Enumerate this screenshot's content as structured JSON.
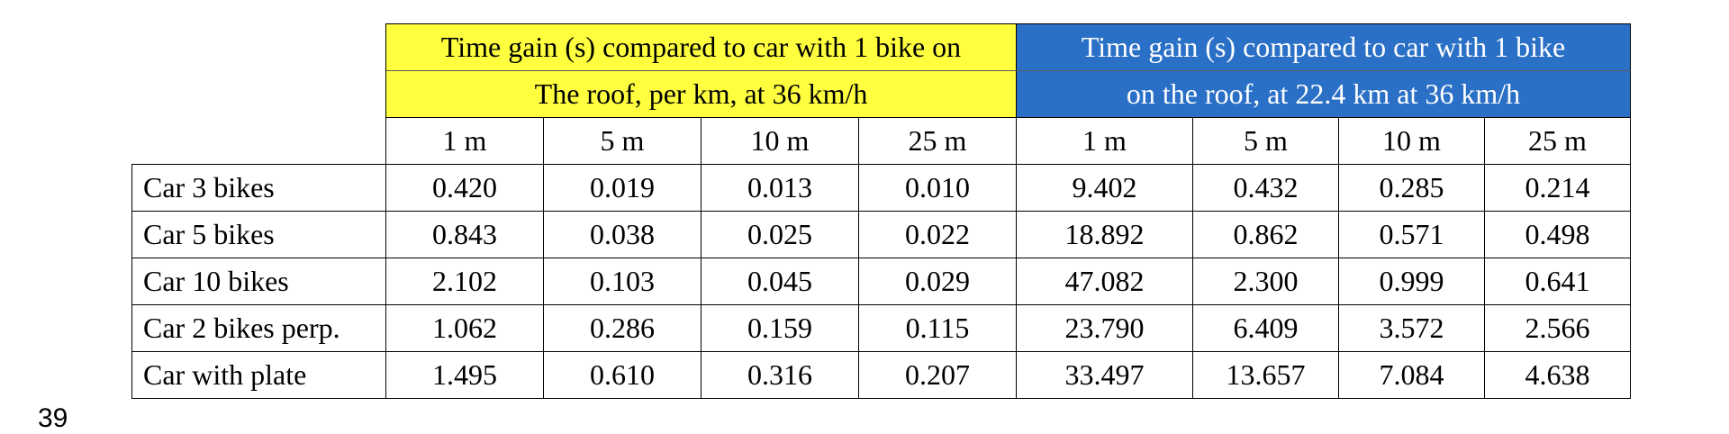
{
  "headers": {
    "group1": {
      "line1": "Time gain (s) compared to car with 1 bike on",
      "line2": "The roof, per km, at 36 km/h",
      "color": "#ffff40"
    },
    "group2": {
      "line1": "Time gain (s) compared to car with 1 bike",
      "line2": "on the roof, at 22.4 km at 36 km/h",
      "color": "#2a70c6"
    },
    "distances": [
      "1 m",
      "5 m",
      "10 m",
      "25 m",
      "1 m",
      "5 m",
      "10 m",
      "25 m"
    ]
  },
  "rows": [
    {
      "label": "Car 3 bikes",
      "values": [
        "0.420",
        "0.019",
        "0.013",
        "0.010",
        "9.402",
        "0.432",
        "0.285",
        "0.214"
      ]
    },
    {
      "label": "Car 5 bikes",
      "values": [
        "0.843",
        "0.038",
        "0.025",
        "0.022",
        "18.892",
        "0.862",
        "0.571",
        "0.498"
      ]
    },
    {
      "label": "Car 10 bikes",
      "values": [
        "2.102",
        "0.103",
        "0.045",
        "0.029",
        "47.082",
        "2.300",
        "0.999",
        "0.641"
      ]
    },
    {
      "label": "Car 2 bikes perp.",
      "values": [
        "1.062",
        "0.286",
        "0.159",
        "0.115",
        "23.790",
        "6.409",
        "3.572",
        "2.566"
      ]
    },
    {
      "label": "Car with plate",
      "values": [
        "1.495",
        "0.610",
        "0.316",
        "0.207",
        "33.497",
        "13.657",
        "7.084",
        "4.638"
      ]
    }
  ],
  "page_number": "39"
}
